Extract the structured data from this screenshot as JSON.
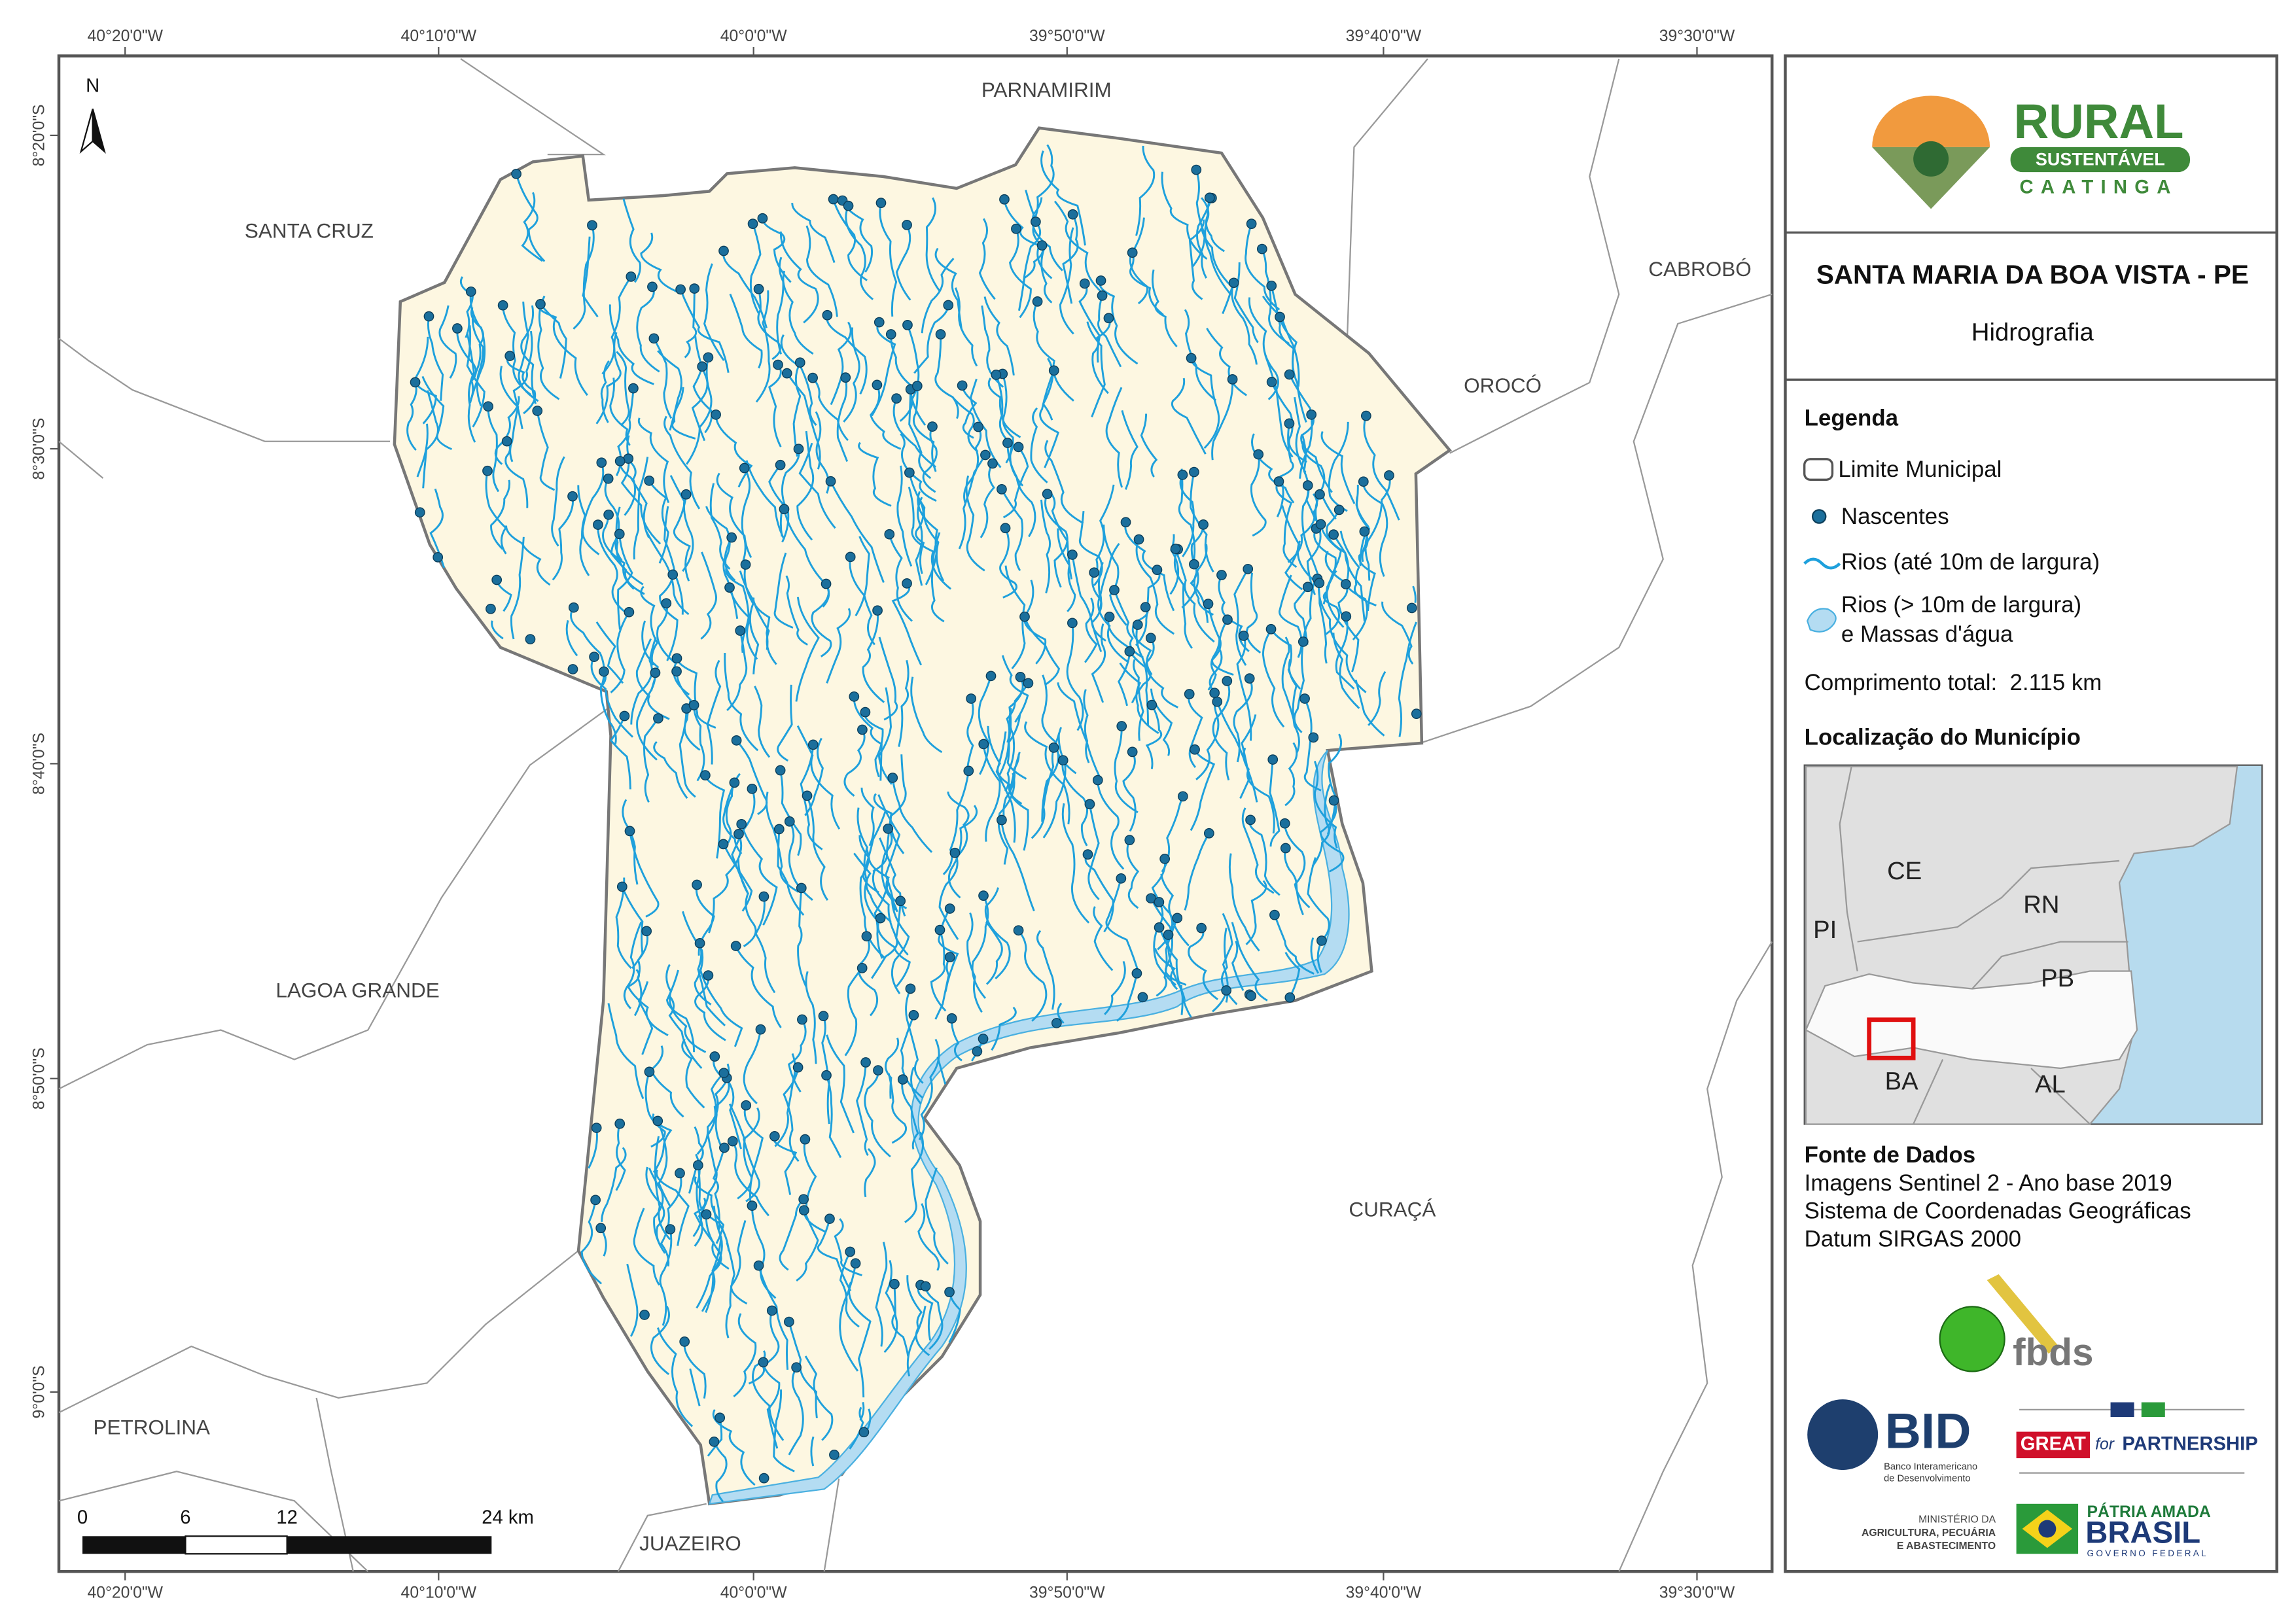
{
  "map": {
    "lon_labels": [
      "40°20'0\"W",
      "40°10'0\"W",
      "40°0'0\"W",
      "39°50'0\"W",
      "39°40'0\"W",
      "39°30'0\"W"
    ],
    "lat_labels": [
      "8°20'0\"S",
      "8°30'0\"S",
      "8°40'0\"S",
      "8°50'0\"S",
      "9°0'0\"S"
    ],
    "neighbors": [
      "PARNAMIRIM",
      "SANTA CRUZ",
      "CABROBÓ",
      "OROCÓ",
      "LAGOA GRANDE",
      "CURAÇÁ",
      "PETROLINA",
      "JUAZEIRO"
    ],
    "north": "N",
    "scale_bar": [
      "0",
      "6",
      "12",
      "24 km"
    ]
  },
  "panel": {
    "logo": {
      "title": "RURAL",
      "subtitle": "SUSTENTÁVEL",
      "region": "CAATINGA"
    },
    "title": "SANTA MARIA DA BOA VISTA - PE",
    "subtitle": "Hidrografia",
    "legend": {
      "title": "Legenda",
      "items": [
        "Limite Municipal",
        "Nascentes",
        "Rios (até 10m de largura)",
        [
          "Rios (> 10m de largura)",
          "e Massas d'água"
        ]
      ]
    },
    "total_length": "Comprimento total:  2.115 km",
    "location": {
      "title": "Localização do Município",
      "states": [
        "CE",
        "RN",
        "PI",
        "PB",
        "BA",
        "AL"
      ]
    },
    "sources": {
      "title": "Fonte de Dados",
      "lines": [
        "Imagens Sentinel 2 - Ano base 2019",
        "Sistema de Coordenadas Geográficas",
        "Datum SIRGAS 2000"
      ]
    },
    "logos": {
      "fbds": "fbds",
      "bid": "BID",
      "bid_name": [
        "Banco Interamericano",
        "de Desenvolvimento"
      ],
      "great": "GREAT",
      "for": "for",
      "partnership": "PARTNERSHIP",
      "ministry": [
        "MINISTÉRIO DA",
        "AGRICULTURA, PECUÁRIA",
        "E ABASTECIMENTO"
      ],
      "patria": "PÁTRIA AMADA",
      "brasil": "BRASIL",
      "governo": "GOVERNO FEDERAL"
    }
  }
}
